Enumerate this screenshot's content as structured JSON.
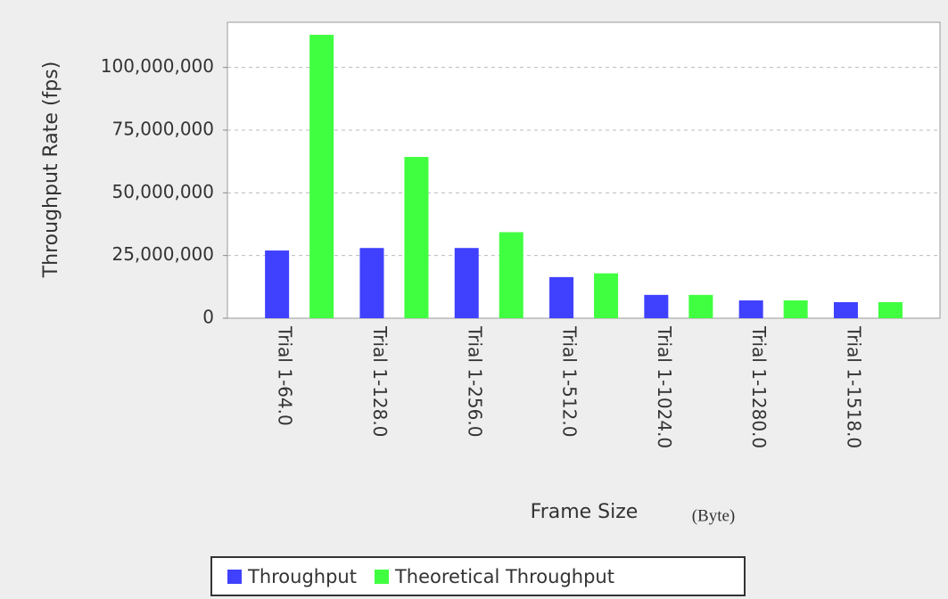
{
  "chart_data": {
    "type": "bar",
    "categories": [
      "Trial 1-64.0",
      "Trial 1-128.0",
      "Trial 1-256.0",
      "Trial 1-512.0",
      "Trial 1-1024.0",
      "Trial 1-1280.0",
      "Trial 1-1518.0"
    ],
    "series": [
      {
        "name": "Throughput",
        "color": "#4040ff",
        "values": [
          27000000,
          28000000,
          28000000,
          16400000,
          9300000,
          7100000,
          6400000
        ]
      },
      {
        "name": "Theoretical Throughput",
        "color": "#40ff40",
        "values": [
          113000000,
          64300000,
          34300000,
          17900000,
          9300000,
          7100000,
          6400000
        ]
      }
    ],
    "x_label": "Frame Size",
    "x_label_unit": "(Byte)",
    "y_label": "Throughput Rate (fps)",
    "ylim": [
      0,
      118000000
    ],
    "yticks": [
      0,
      {
        "value": 25000000,
        "label": "25,000,000"
      },
      {
        "value": 50000000,
        "label": "50,000,000"
      },
      {
        "value": 75000000,
        "label": "75,000,000"
      },
      {
        "value": 100000000,
        "label": "100,000,000"
      }
    ],
    "grid": true
  }
}
